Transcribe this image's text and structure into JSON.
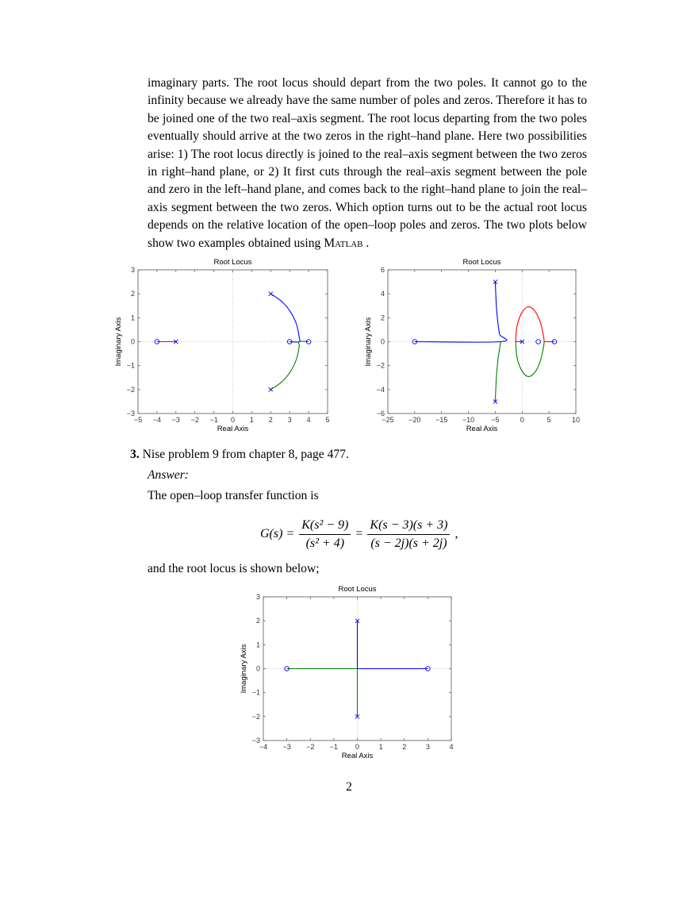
{
  "paragraph": {
    "text": "imaginary parts. The root locus should depart from the two poles. It cannot go to the infinity because we already have the same number of poles and zeros. Therefore it has to be joined one of the two real–axis segment. The root locus departing from the two poles eventually should arrive at the two zeros in the right–hand plane. Here two possibilities arise: 1) The root locus directly is joined to the real–axis segment between the two zeros in right–hand plane, or 2) It first cuts through the real–axis segment between the pole and zero in the left–hand plane, and comes back to the right–hand plane to join the real–axis segment between the two zeros. Which option turns out to be the actual root locus depends on the relative location of the open–loop poles and zeros. The two plots below show two examples obtained using",
    "matlab": "Matlab",
    "tail": " ."
  },
  "problem": {
    "number": "3.",
    "text": "Nise problem 9 from chapter 8, page 477."
  },
  "answer_label": "Answer:",
  "intro_text": "The open–loop transfer function is",
  "equation": {
    "lhs": "G(s) =",
    "frac1_num": "K(s² − 9)",
    "frac1_den": "(s² + 4)",
    "equals": "=",
    "frac2_num": "K(s − 3)(s + 3)",
    "frac2_den": "(s − 2j)(s + 2j)",
    "trail": ","
  },
  "outro_text": "and the root locus is shown below;",
  "page_number": "2",
  "colors": {
    "blue": "#0000ff",
    "green": "#008000",
    "red": "#ff0000",
    "grid": "#bbbbbb"
  },
  "chart_data": [
    {
      "type": "line",
      "title": "Root Locus",
      "xlabel": "Real Axis",
      "ylabel": "Imaginary Axis",
      "xlim": [
        -5,
        5
      ],
      "ylim": [
        -3,
        3
      ],
      "xticks": [
        -5,
        -4,
        -3,
        -2,
        -1,
        0,
        1,
        2,
        3,
        4,
        5
      ],
      "yticks": [
        -3,
        -2,
        -1,
        0,
        1,
        2,
        3
      ],
      "grid": "dotted zero lines",
      "poles": [
        [
          -3,
          0
        ],
        [
          2,
          2
        ],
        [
          2,
          -2
        ]
      ],
      "zeros": [
        [
          -4,
          0
        ],
        [
          3,
          0
        ],
        [
          4,
          0
        ]
      ],
      "series": [
        {
          "color": "red",
          "points": [
            [
              -3,
              0
            ],
            [
              -4,
              0
            ]
          ]
        },
        {
          "color": "blue",
          "points": [
            [
              2,
              2
            ],
            [
              2.55,
              1.7
            ],
            [
              3.0,
              1.3
            ],
            [
              3.35,
              0.75
            ],
            [
              3.5,
              0.2
            ],
            [
              3.5,
              0
            ],
            [
              3.0,
              0
            ]
          ]
        },
        {
          "color": "green",
          "points": [
            [
              2,
              -2
            ],
            [
              2.55,
              -1.7
            ],
            [
              3.0,
              -1.3
            ],
            [
              3.35,
              -0.75
            ],
            [
              3.5,
              -0.2
            ],
            [
              3.5,
              0
            ],
            [
              4.0,
              0
            ]
          ]
        }
      ]
    },
    {
      "type": "line",
      "title": "Root Locus",
      "xlabel": "Real Axis",
      "ylabel": "Imaginary Axis",
      "xlim": [
        -25,
        10
      ],
      "ylim": [
        -6,
        6
      ],
      "xticks": [
        -25,
        -20,
        -15,
        -10,
        -5,
        0,
        5,
        10
      ],
      "yticks": [
        -6,
        -4,
        -2,
        0,
        2,
        4,
        6
      ],
      "grid": "dotted zero lines",
      "poles": [
        [
          -5,
          5
        ],
        [
          -5,
          -5
        ],
        [
          0,
          0
        ]
      ],
      "zeros": [
        [
          -20,
          0
        ],
        [
          3,
          0
        ],
        [
          6,
          0
        ]
      ],
      "series": [
        {
          "color": "blue",
          "points": [
            [
              -5,
              5
            ],
            [
              -4.8,
              3
            ],
            [
              -4.5,
              1.5
            ],
            [
              -4.2,
              0.6
            ],
            [
              -4.0,
              0
            ],
            [
              -20,
              0
            ]
          ]
        },
        {
          "color": "green",
          "points": [
            [
              -5,
              -5
            ],
            [
              -4.8,
              -3
            ],
            [
              -4.5,
              -1.5
            ],
            [
              -4.2,
              -0.6
            ],
            [
              -4.0,
              0
            ]
          ]
        },
        {
          "color": "red",
          "points": [
            [
              0,
              0
            ],
            [
              -1.2,
              0
            ]
          ]
        },
        {
          "color": "red",
          "points": [
            [
              -1.2,
              0
            ],
            [
              -1.0,
              1.2
            ],
            [
              -0.2,
              2.3
            ],
            [
              1.0,
              2.9
            ],
            [
              2.3,
              2.6
            ],
            [
              3.4,
              1.6
            ],
            [
              4.0,
              0.4
            ],
            [
              4.1,
              0
            ]
          ]
        },
        {
          "color": "green",
          "points": [
            [
              -1.2,
              0
            ],
            [
              -1.0,
              -1.2
            ],
            [
              -0.2,
              -2.3
            ],
            [
              1.0,
              -2.9
            ],
            [
              2.3,
              -2.6
            ],
            [
              3.4,
              -1.6
            ],
            [
              4.0,
              -0.4
            ],
            [
              4.1,
              0
            ]
          ]
        },
        {
          "color": "red",
          "points": [
            [
              4.1,
              0
            ],
            [
              6,
              0
            ]
          ]
        }
      ]
    },
    {
      "type": "line",
      "title": "Root Locus",
      "xlabel": "Real Axis",
      "ylabel": "Imaginary Axis",
      "xlim": [
        -4,
        4
      ],
      "ylim": [
        -3,
        3
      ],
      "xticks": [
        -4,
        -3,
        -2,
        -1,
        0,
        1,
        2,
        3,
        4
      ],
      "yticks": [
        -3,
        -2,
        -1,
        0,
        1,
        2,
        3
      ],
      "grid": "dotted zero lines",
      "poles": [
        [
          0,
          2
        ],
        [
          0,
          -2
        ]
      ],
      "zeros": [
        [
          -3,
          0
        ],
        [
          3,
          0
        ]
      ],
      "series": [
        {
          "color": "blue",
          "points": [
            [
              0,
              2
            ],
            [
              0,
              0
            ]
          ]
        },
        {
          "color": "green",
          "points": [
            [
              0,
              -2
            ],
            [
              0,
              0
            ]
          ]
        },
        {
          "color": "blue",
          "points": [
            [
              0,
              0
            ],
            [
              3,
              0
            ]
          ]
        },
        {
          "color": "green",
          "points": [
            [
              0,
              0
            ],
            [
              -3,
              0
            ]
          ]
        }
      ]
    }
  ]
}
